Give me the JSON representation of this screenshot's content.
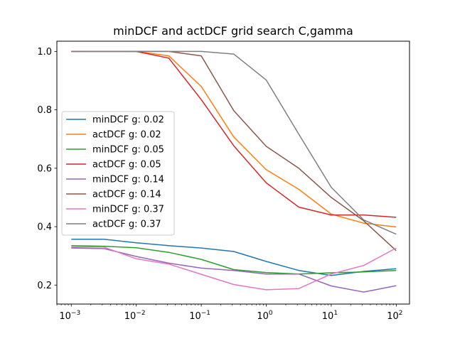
{
  "chart_data": {
    "type": "line",
    "title": "minDCF and actDCF grid search C,gamma",
    "xlabel": "",
    "ylabel": "",
    "xscale": "log",
    "xlim": [
      0.0006,
      160
    ],
    "ylim": [
      0.135,
      1.035
    ],
    "grid": false,
    "legend_position": "center-left",
    "x": [
      0.001,
      0.00316,
      0.01,
      0.0316,
      0.1,
      0.316,
      1,
      3.16,
      10,
      31.6,
      100
    ],
    "x_ticks": [
      {
        "value": 0.001,
        "base": "10",
        "exp": "−3"
      },
      {
        "value": 0.01,
        "base": "10",
        "exp": "−2"
      },
      {
        "value": 0.1,
        "base": "10",
        "exp": "−1"
      },
      {
        "value": 1,
        "base": "10",
        "exp": "0"
      },
      {
        "value": 10,
        "base": "10",
        "exp": "1"
      },
      {
        "value": 100,
        "base": "10",
        "exp": "2"
      }
    ],
    "y_ticks": [
      {
        "value": 0.2,
        "label": "0.2"
      },
      {
        "value": 0.4,
        "label": "0.4"
      },
      {
        "value": 0.6,
        "label": "0.6"
      },
      {
        "value": 0.8,
        "label": "0.8"
      },
      {
        "value": 1.0,
        "label": "1.0"
      }
    ],
    "series": [
      {
        "name": "minDCF g: 0.02",
        "color": "#1f77b4",
        "values": [
          0.357,
          0.357,
          0.345,
          0.335,
          0.327,
          0.315,
          0.281,
          0.25,
          0.233,
          0.247,
          0.256
        ]
      },
      {
        "name": "actDCF g: 0.02",
        "color": "#ff7f0e",
        "values": [
          1.0,
          1.0,
          1.0,
          0.985,
          0.88,
          0.707,
          0.595,
          0.528,
          0.443,
          0.412,
          0.399
        ]
      },
      {
        "name": "minDCF g: 0.05",
        "color": "#2ca02c",
        "values": [
          0.335,
          0.333,
          0.328,
          0.312,
          0.288,
          0.253,
          0.243,
          0.238,
          0.242,
          0.245,
          0.25
        ]
      },
      {
        "name": "actDCF g: 0.05",
        "color": "#d62728",
        "values": [
          1.0,
          1.0,
          1.0,
          0.977,
          0.835,
          0.677,
          0.55,
          0.467,
          0.44,
          0.44,
          0.432
        ]
      },
      {
        "name": "minDCF g: 0.14",
        "color": "#9467bd",
        "values": [
          0.327,
          0.325,
          0.298,
          0.275,
          0.258,
          0.25,
          0.238,
          0.238,
          0.197,
          0.176,
          0.198
        ]
      },
      {
        "name": "actDCF g: 0.14",
        "color": "#8c564b",
        "values": [
          1.0,
          1.0,
          1.0,
          1.0,
          0.985,
          0.797,
          0.675,
          0.6,
          0.5,
          0.42,
          0.318
        ]
      },
      {
        "name": "minDCF g: 0.37",
        "color": "#e377c2",
        "values": [
          0.33,
          0.33,
          0.29,
          0.272,
          0.237,
          0.202,
          0.184,
          0.188,
          0.238,
          0.267,
          0.327
        ]
      },
      {
        "name": "actDCF g: 0.37",
        "color": "#7f7f7f",
        "values": [
          1.0,
          1.0,
          1.0,
          1.0,
          1.0,
          0.991,
          0.902,
          0.717,
          0.535,
          0.423,
          0.374
        ]
      }
    ]
  }
}
